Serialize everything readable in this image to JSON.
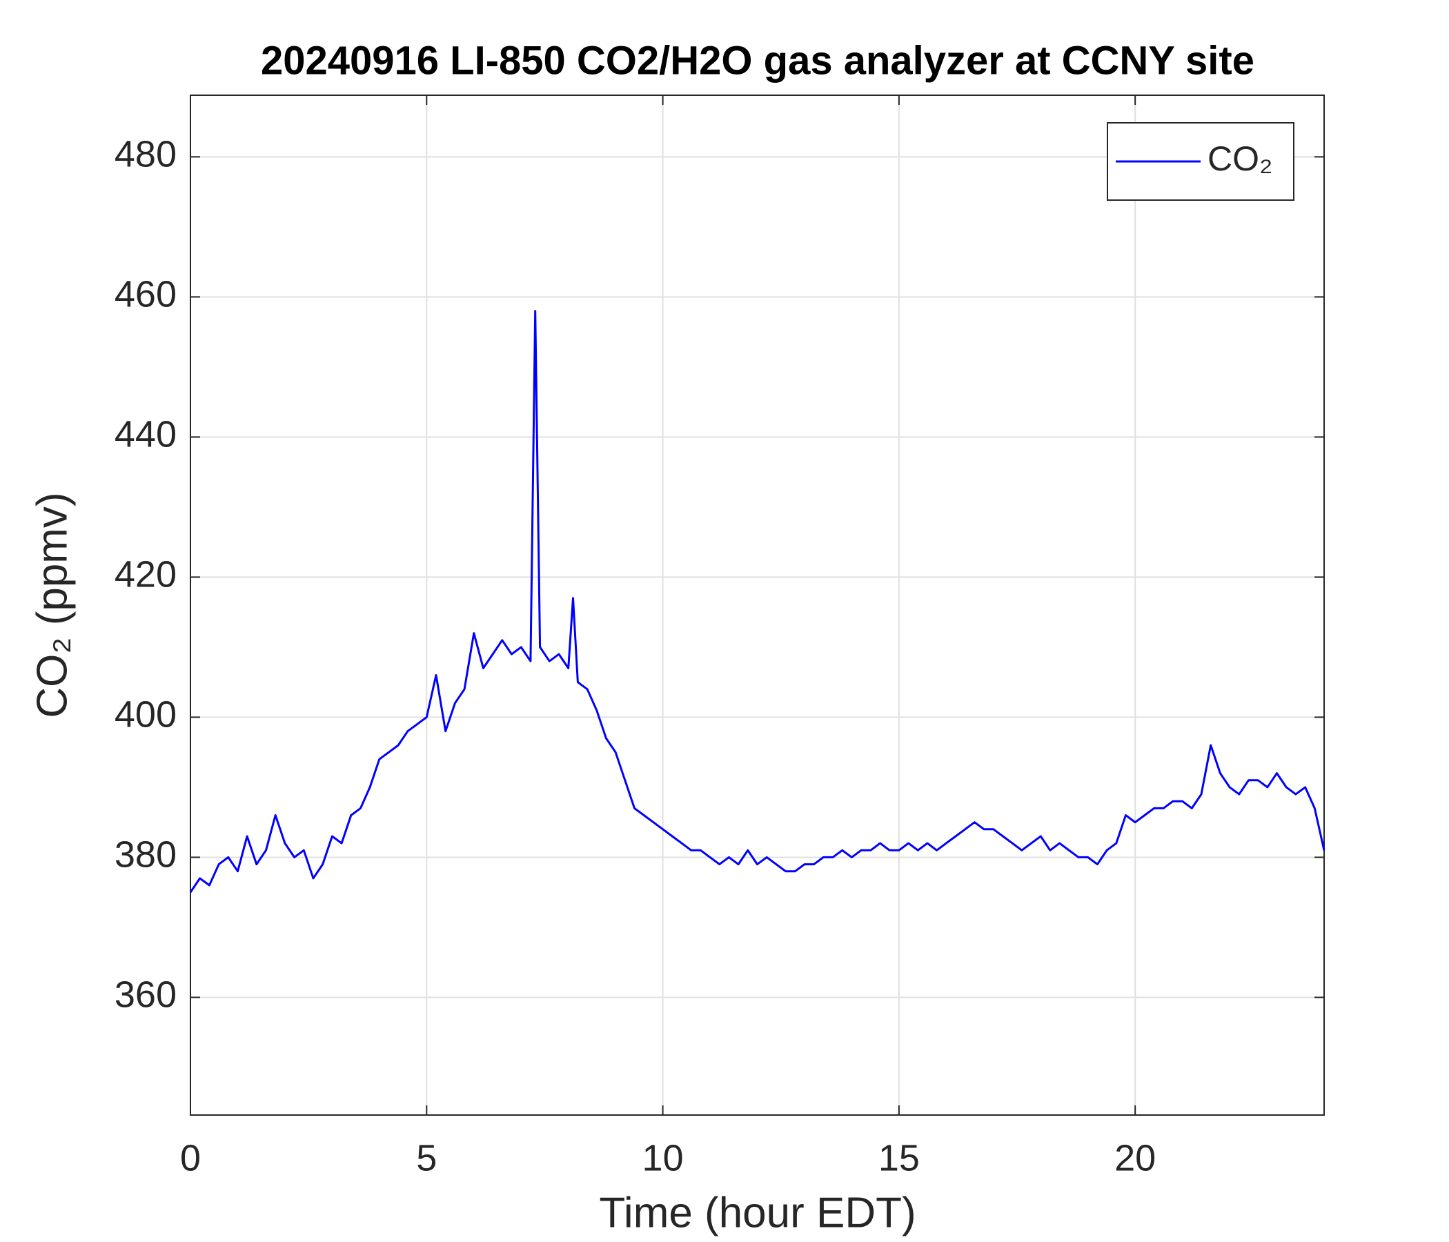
{
  "chart_data": {
    "type": "line",
    "title": "20240916 LI-850 CO2/H2O gas analyzer at CCNY site",
    "x_label": "Time (hour EDT)",
    "y_label": "CO₂ (ppmv)",
    "xlim": [
      0,
      24
    ],
    "xticks": [
      0,
      5,
      10,
      15,
      20
    ],
    "ylim": [
      343.2,
      488.8
    ],
    "yticks": [
      360,
      380,
      400,
      420,
      440,
      460,
      480
    ],
    "grid": true,
    "legend": "northeast",
    "x": [
      0.0,
      0.2,
      0.4,
      0.6,
      0.8,
      1.0,
      1.2,
      1.4,
      1.6,
      1.8,
      2.0,
      2.2,
      2.4,
      2.6,
      2.8,
      3.0,
      3.2,
      3.4,
      3.6,
      3.8,
      4.0,
      4.2,
      4.4,
      4.6,
      4.8,
      5.0,
      5.2,
      5.4,
      5.6,
      5.8,
      6.0,
      6.2,
      6.4,
      6.6,
      6.8,
      7.0,
      7.2,
      7.3,
      7.4,
      7.6,
      7.8,
      8.0,
      8.1,
      8.2,
      8.4,
      8.6,
      8.8,
      9.0,
      9.2,
      9.4,
      9.6,
      9.8,
      10.0,
      10.2,
      10.4,
      10.6,
      10.8,
      11.0,
      11.2,
      11.4,
      11.6,
      11.8,
      12.0,
      12.2,
      12.4,
      12.6,
      12.8,
      13.0,
      13.2,
      13.4,
      13.6,
      13.8,
      14.0,
      14.2,
      14.4,
      14.6,
      14.8,
      15.0,
      15.2,
      15.4,
      15.6,
      15.8,
      16.0,
      16.2,
      16.4,
      16.6,
      16.8,
      17.0,
      17.2,
      17.4,
      17.6,
      17.8,
      18.0,
      18.2,
      18.4,
      18.6,
      18.8,
      19.0,
      19.2,
      19.4,
      19.6,
      19.8,
      20.0,
      20.2,
      20.4,
      20.6,
      20.8,
      21.0,
      21.2,
      21.4,
      21.6,
      21.8,
      22.0,
      22.2,
      22.4,
      22.6,
      22.8,
      23.0,
      23.2,
      23.4,
      23.6,
      23.8,
      24.0
    ],
    "series": [
      {
        "name": "CO₂",
        "color": "#0000ff",
        "values": [
          375,
          377,
          376,
          379,
          380,
          378,
          383,
          379,
          381,
          386,
          382,
          380,
          381,
          377,
          379,
          383,
          382,
          386,
          387,
          390,
          394,
          395,
          396,
          398,
          399,
          400,
          406,
          398,
          402,
          404,
          412,
          407,
          409,
          411,
          409,
          410,
          408,
          458,
          410,
          408,
          409,
          407,
          417,
          405,
          404,
          401,
          397,
          395,
          391,
          387,
          386,
          385,
          384,
          383,
          382,
          381,
          381,
          380,
          379,
          380,
          379,
          381,
          379,
          380,
          379,
          378,
          378,
          379,
          379,
          380,
          380,
          381,
          380,
          381,
          381,
          382,
          381,
          381,
          382,
          381,
          382,
          381,
          382,
          383,
          384,
          385,
          384,
          384,
          383,
          382,
          381,
          382,
          383,
          381,
          382,
          381,
          380,
          380,
          379,
          381,
          382,
          386,
          385,
          386,
          387,
          387,
          388,
          388,
          387,
          389,
          396,
          392,
          390,
          389,
          391,
          391,
          390,
          392,
          390,
          389,
          390,
          387,
          381
        ]
      }
    ]
  }
}
